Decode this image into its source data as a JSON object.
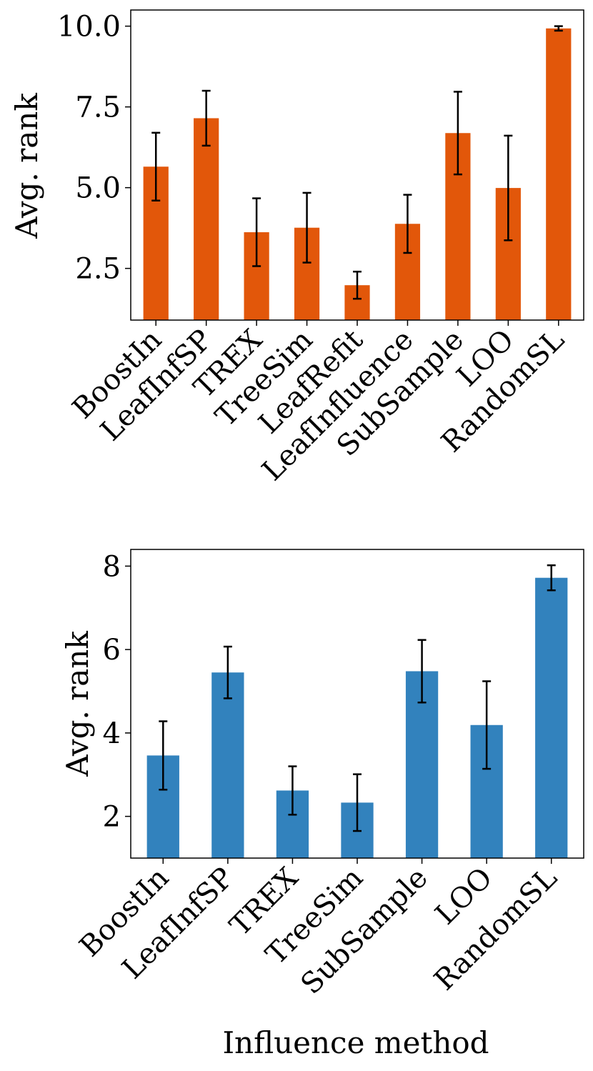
{
  "chart_data": [
    {
      "type": "bar",
      "title": "",
      "xlabel": "",
      "ylabel": "Avg. rank",
      "color": "#e2570a",
      "ylim": [
        0.9,
        10.5
      ],
      "yticks": [
        2.5,
        5.0,
        7.5,
        10.0
      ],
      "ytick_labels": [
        "2.5",
        "5.0",
        "7.5",
        "10.0"
      ],
      "categories": [
        "BoostIn",
        "LeafInfSP",
        "TREX",
        "TreeSim",
        "LeafRefit",
        "LeafInfluence",
        "SubSample",
        "LOO",
        "RandomSL"
      ],
      "values": [
        5.65,
        7.15,
        3.62,
        3.76,
        1.98,
        3.88,
        6.69,
        4.99,
        9.93
      ],
      "errors": [
        1.05,
        0.85,
        1.05,
        1.08,
        0.42,
        0.9,
        1.28,
        1.62,
        0.07
      ]
    },
    {
      "type": "bar",
      "title": "",
      "xlabel": "Influence method",
      "ylabel": "Avg. rank",
      "color": "#3282bd",
      "ylim": [
        1.0,
        8.4
      ],
      "yticks": [
        2,
        4,
        6,
        8
      ],
      "ytick_labels": [
        "2",
        "4",
        "6",
        "8"
      ],
      "categories": [
        "BoostIn",
        "LeafInfSP",
        "TREX",
        "TreeSim",
        "SubSample",
        "LOO",
        "RandomSL"
      ],
      "values": [
        3.46,
        5.45,
        2.62,
        2.33,
        5.48,
        4.19,
        7.72
      ],
      "errors": [
        0.82,
        0.62,
        0.58,
        0.68,
        0.75,
        1.05,
        0.3
      ]
    }
  ]
}
